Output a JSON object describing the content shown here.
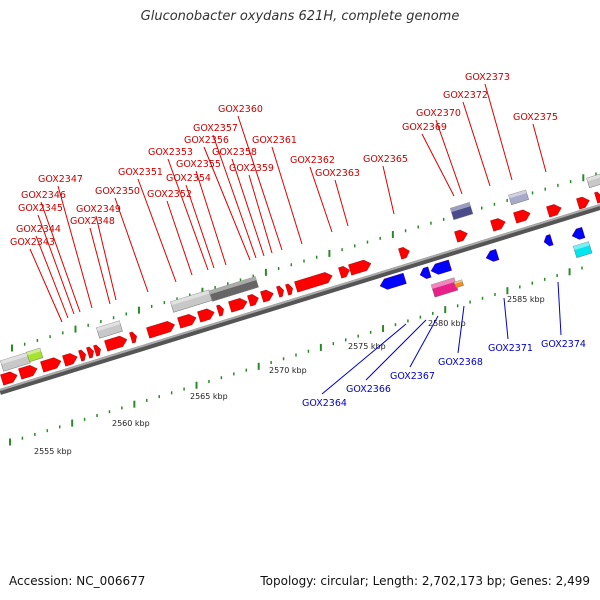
{
  "header": {
    "title": "Gluconobacter oxydans 621H, complete genome"
  },
  "footer": {
    "accession": "Accession: NC_006677",
    "summary": "Topology: circular; Length: 2,702,173 bp; Genes: 2,499"
  },
  "colors": {
    "forward_gene": "#ff0000",
    "reverse_gene": "#0000ff",
    "forward_label": "#cc0000",
    "reverse_label": "#0000cc",
    "backbone": "#888888",
    "tick": "#2a8a2a"
  },
  "scale": {
    "unit": "kbp",
    "labels": [
      "2555 kbp",
      "2560 kbp",
      "2565 kbp",
      "2570 kbp",
      "2575 kbp",
      "2580 kbp",
      "2585 kbp"
    ]
  },
  "forward_labels": [
    "GOX2343",
    "GOX2344",
    "GOX2345",
    "GOX2346",
    "GOX2347",
    "GOX2348",
    "GOX2349",
    "GOX2350",
    "GOX2351",
    "GOX2352",
    "GOX2353",
    "GOX2354",
    "GOX2355",
    "GOX2356",
    "GOX2357",
    "GOX2358",
    "GOX2359",
    "GOX2360",
    "GOX2361",
    "GOX2362",
    "GOX2363",
    "GOX2365",
    "GOX2369",
    "GOX2370",
    "GOX2372",
    "GOX2373",
    "GOX2375"
  ],
  "reverse_labels": [
    "GOX2364",
    "GOX2366",
    "GOX2367",
    "GOX2368",
    "GOX2371",
    "GOX2374"
  ]
}
